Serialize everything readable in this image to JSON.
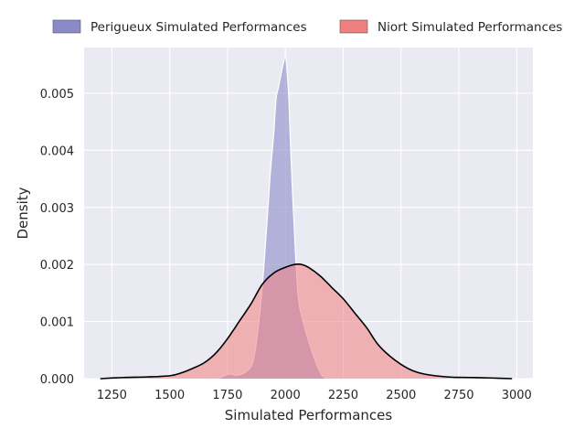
{
  "chart_data": {
    "type": "area",
    "title": "",
    "xlabel": "Simulated Performances",
    "ylabel": "Density",
    "xlim": [
      1130,
      3070
    ],
    "ylim": [
      0,
      0.0058
    ],
    "x_ticks": [
      1250,
      1500,
      1750,
      2000,
      2250,
      2500,
      2750,
      3000
    ],
    "y_ticks": [
      0.0,
      0.001,
      0.002,
      0.003,
      0.004,
      0.005
    ],
    "y_tick_labels": [
      "0.000",
      "0.001",
      "0.002",
      "0.003",
      "0.004",
      "0.005"
    ],
    "grid": true,
    "legend_position": "top",
    "series": [
      {
        "name": "Perigueux Simulated Performances",
        "fill": "#8a8ac8",
        "fill_opacity": 0.6,
        "edge": "#ffffff",
        "x": [
          1700,
          1720,
          1740,
          1760,
          1790,
          1830,
          1860,
          1880,
          1900,
          1920,
          1935,
          1950,
          1960,
          1970,
          1980,
          1990,
          2000,
          2005,
          2015,
          2025,
          2040,
          2055,
          2070,
          2080,
          2090,
          2105,
          2120,
          2140,
          2160,
          2180
        ],
        "y": [
          0.0,
          2e-05,
          6e-05,
          8e-05,
          6e-05,
          0.00012,
          0.0003,
          0.0008,
          0.0016,
          0.0027,
          0.0036,
          0.0043,
          0.0049,
          0.0051,
          0.0053,
          0.0055,
          0.00565,
          0.0055,
          0.0049,
          0.0038,
          0.0025,
          0.00145,
          0.0011,
          0.00095,
          0.0008,
          0.0006,
          0.00042,
          0.0002,
          5e-05,
          0.0
        ]
      },
      {
        "name": "Niort Simulated Performances",
        "fill": "#f08080",
        "fill_opacity": 0.55,
        "edge": "#000000",
        "x": [
          1200,
          1300,
          1400,
          1500,
          1550,
          1600,
          1650,
          1700,
          1750,
          1800,
          1850,
          1900,
          1950,
          2000,
          2040,
          2070,
          2100,
          2150,
          2200,
          2250,
          2300,
          2350,
          2400,
          2450,
          2500,
          2550,
          2600,
          2700,
          2800,
          2900,
          2980
        ],
        "y": [
          0.0,
          2e-05,
          3e-05,
          5e-05,
          0.0001,
          0.00018,
          0.00028,
          0.00045,
          0.0007,
          0.001,
          0.0013,
          0.00165,
          0.00185,
          0.00195,
          0.002,
          0.002,
          0.00195,
          0.0018,
          0.0016,
          0.0014,
          0.00115,
          0.0009,
          0.0006,
          0.0004,
          0.00025,
          0.00014,
          8e-05,
          3e-05,
          2e-05,
          1e-05,
          0.0
        ]
      }
    ]
  }
}
